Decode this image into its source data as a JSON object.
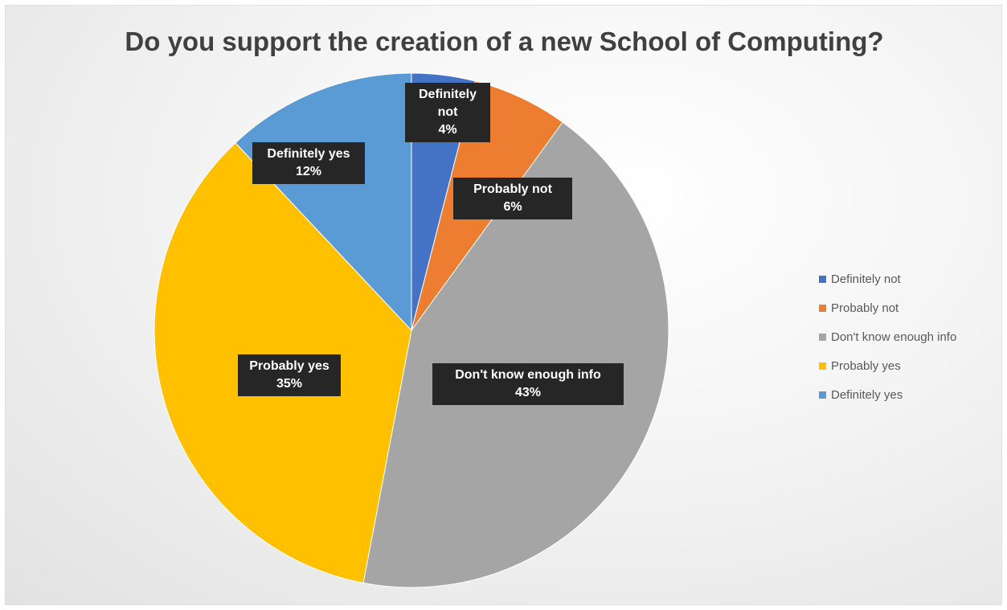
{
  "chart_data": {
    "type": "pie",
    "title": "Do you support the creation of a new School of Computing?",
    "categories": [
      "Definitely not",
      "Probably not",
      "Don't know enough info",
      "Probably yes",
      "Definitely yes"
    ],
    "values": [
      4,
      6,
      43,
      35,
      12
    ],
    "value_labels": [
      "4%",
      "6%",
      "43%",
      "35%",
      "12%"
    ],
    "data_labels": [
      "Definitely not",
      "Probably not",
      "Don't know enough info",
      "Probably yes",
      "Definitely yes"
    ],
    "colors": [
      "#4472C4",
      "#ED7D31",
      "#A5A5A5",
      "#FFC000",
      "#5B9BD5"
    ],
    "legend_position": "right",
    "start_angle_deg": 0,
    "direction": "clockwise"
  }
}
